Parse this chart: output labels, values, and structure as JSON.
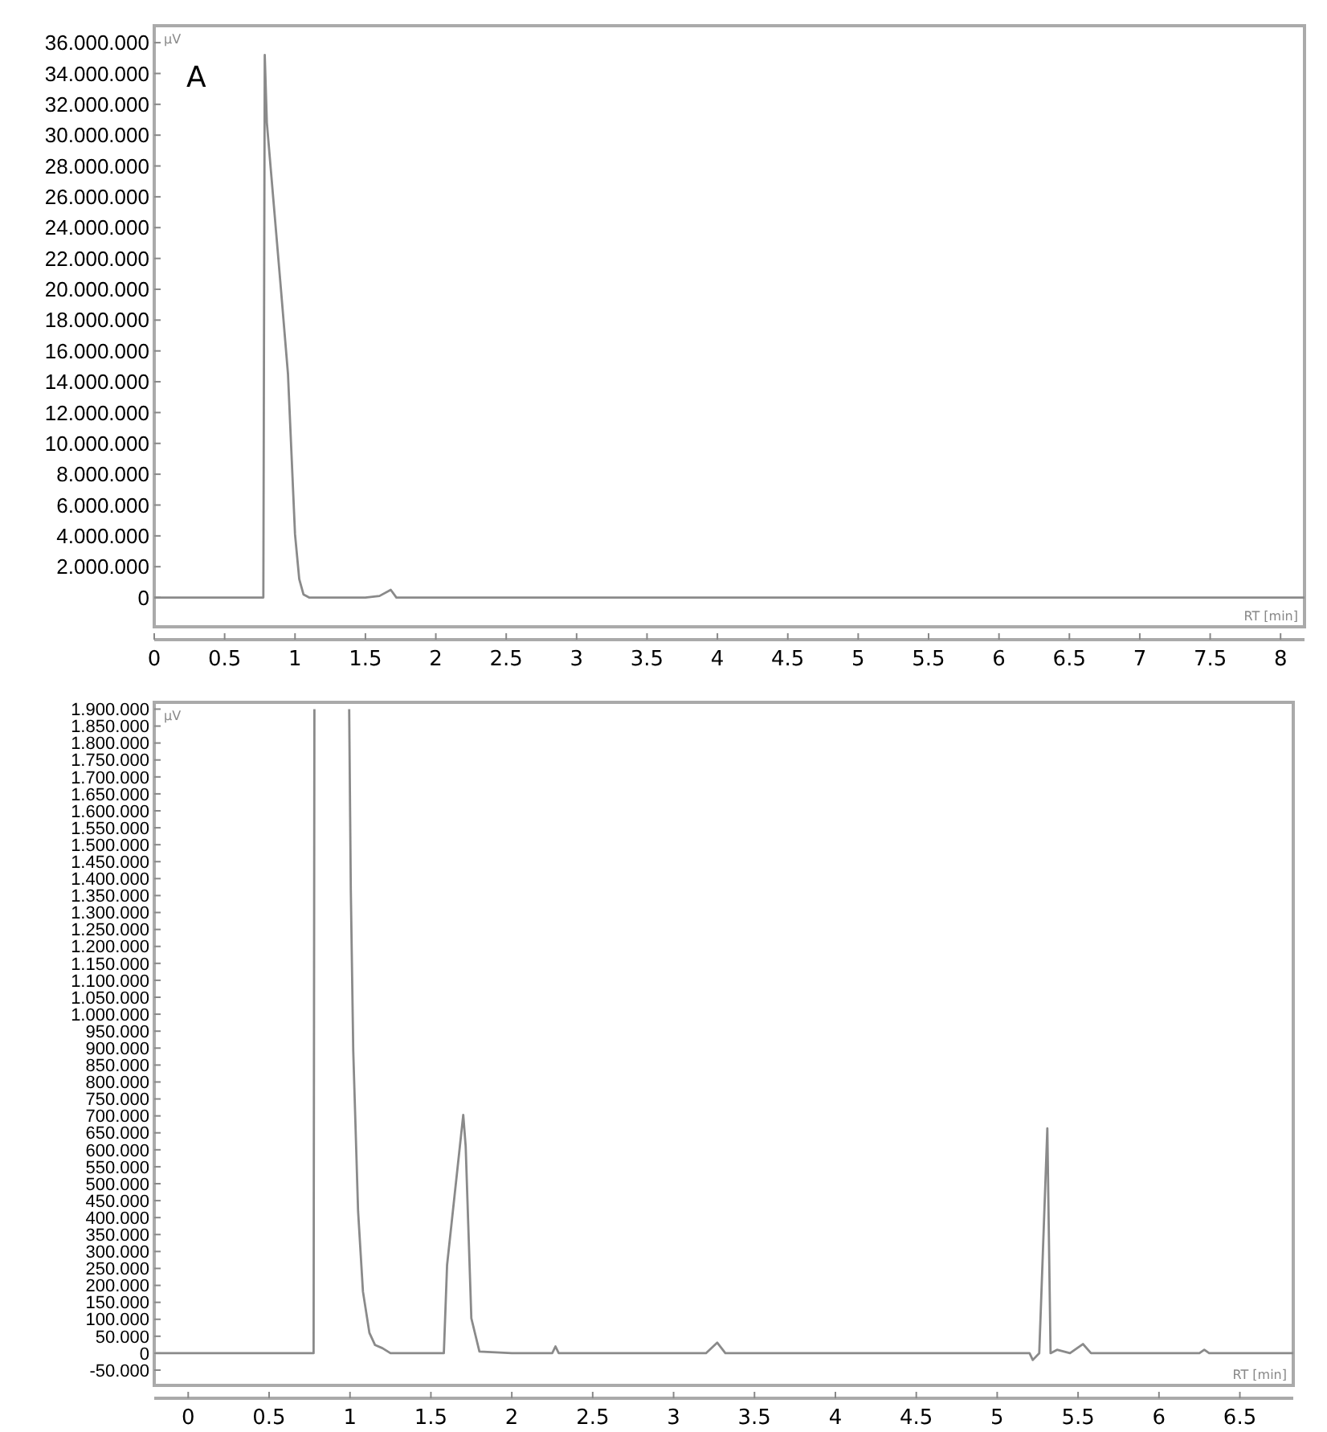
{
  "chart_data": [
    {
      "type": "line",
      "xlabel": "RT [min]",
      "ylabel": "µV",
      "annotations": [
        "A"
      ],
      "xlim": [
        0,
        8.17
      ],
      "ylim": [
        -1900000,
        37100000
      ],
      "xticks": [
        0,
        0.5,
        1,
        1.5,
        2,
        2.5,
        3,
        3.5,
        4,
        4.5,
        5,
        5.5,
        6,
        6.5,
        7,
        7.5,
        8
      ],
      "yticks": [
        0,
        {
          "value": 2000000,
          "label": "2.000.000"
        },
        {
          "value": 4000000,
          "label": "4.000.000"
        },
        {
          "value": 6000000,
          "label": "6.000.000"
        },
        {
          "value": 8000000,
          "label": "8.000.000"
        },
        {
          "value": 10000000,
          "label": "10.000.000"
        },
        {
          "value": 12000000,
          "label": "12.000.000"
        },
        {
          "value": 14000000,
          "label": "14.000.000"
        },
        {
          "value": 16000000,
          "label": "16.000.000"
        },
        {
          "value": 18000000,
          "label": "18.000.000"
        },
        {
          "value": 20000000,
          "label": "20.000.000"
        },
        {
          "value": 22000000,
          "label": "22.000.000"
        },
        {
          "value": 24000000,
          "label": "24.000.000"
        },
        {
          "value": 26000000,
          "label": "26.000.000"
        },
        {
          "value": 28000000,
          "label": "28.000.000"
        },
        {
          "value": 30000000,
          "label": "30.000.000"
        },
        {
          "value": 32000000,
          "label": "32.000.000"
        },
        {
          "value": 34000000,
          "label": "34.000.000"
        },
        {
          "value": 36000000,
          "label": "36.000.000"
        }
      ],
      "marker": "none",
      "line_style": "solid",
      "series": [
        {
          "color": "#8a8a8a",
          "x": [
            0,
            0.5,
            0.76,
            0.775,
            0.785,
            0.8,
            0.85,
            0.9,
            0.95,
            1.0,
            1.03,
            1.06,
            1.1,
            1.2,
            1.5,
            1.6,
            1.68,
            1.72,
            1.8,
            2.5,
            5.2,
            5.3,
            5.4,
            6.9,
            8.17
          ],
          "values": [
            0,
            0,
            0,
            0,
            35200000,
            30800000,
            25400000,
            20000000,
            14500000,
            4100000,
            1200000,
            200000,
            0,
            0,
            0,
            100000,
            500000,
            0,
            0,
            0,
            0,
            0,
            0,
            0,
            0
          ]
        }
      ]
    },
    {
      "type": "line",
      "xlabel": "RT [min]",
      "ylabel": "µV",
      "xlim": [
        -0.21,
        6.83
      ],
      "ylim": [
        -95000,
        1920000
      ],
      "xticks": [
        0,
        0.5,
        1,
        1.5,
        2,
        2.5,
        3,
        3.5,
        4,
        4.5,
        5,
        5.5,
        6,
        6.5
      ],
      "yticks": [
        {
          "value": -50000,
          "label": "-50.000"
        },
        0,
        {
          "value": 50000,
          "label": "50.000"
        },
        {
          "value": 100000,
          "label": "100.000"
        },
        {
          "value": 150000,
          "label": "150.000"
        },
        {
          "value": 200000,
          "label": "200.000"
        },
        {
          "value": 250000,
          "label": "250.000"
        },
        {
          "value": 300000,
          "label": "300.000"
        },
        {
          "value": 350000,
          "label": "350.000"
        },
        {
          "value": 400000,
          "label": "400.000"
        },
        {
          "value": 450000,
          "label": "450.000"
        },
        {
          "value": 500000,
          "label": "500.000"
        },
        {
          "value": 550000,
          "label": "550.000"
        },
        {
          "value": 600000,
          "label": "600.000"
        },
        {
          "value": 650000,
          "label": "650.000"
        },
        {
          "value": 700000,
          "label": "700.000"
        },
        {
          "value": 750000,
          "label": "750.000"
        },
        {
          "value": 800000,
          "label": "800.000"
        },
        {
          "value": 850000,
          "label": "850.000"
        },
        {
          "value": 900000,
          "label": "900.000"
        },
        {
          "value": 950000,
          "label": "950.000"
        },
        {
          "value": 1000000,
          "label": "1.000.000"
        },
        {
          "value": 1050000,
          "label": "1.050.000"
        },
        {
          "value": 1100000,
          "label": "1.100.000"
        },
        {
          "value": 1150000,
          "label": "1.150.000"
        },
        {
          "value": 1200000,
          "label": "1.200.000"
        },
        {
          "value": 1250000,
          "label": "1.250.000"
        },
        {
          "value": 1300000,
          "label": "1.300.000"
        },
        {
          "value": 1350000,
          "label": "1.350.000"
        },
        {
          "value": 1400000,
          "label": "1.400.000"
        },
        {
          "value": 1450000,
          "label": "1.450.000"
        },
        {
          "value": 1500000,
          "label": "1.500.000"
        },
        {
          "value": 1550000,
          "label": "1.550.000"
        },
        {
          "value": 1600000,
          "label": "1.600.000"
        },
        {
          "value": 1650000,
          "label": "1.650.000"
        },
        {
          "value": 1700000,
          "label": "1.700.000"
        },
        {
          "value": 1750000,
          "label": "1.750.000"
        },
        {
          "value": 1800000,
          "label": "1.800.000"
        },
        {
          "value": 1850000,
          "label": "1.850.000"
        },
        {
          "value": 1900000,
          "label": "1.900.000"
        }
      ],
      "marker": "none",
      "line_style": "solid",
      "series": [
        {
          "color": "#8a8a8a",
          "x": [
            -0.2,
            0.5,
            0.775,
            0.78,
            0.9,
            0.995,
            1.005,
            1.02,
            1.05,
            1.08,
            1.12,
            1.155,
            1.2,
            1.25,
            1.58,
            1.6,
            1.7,
            1.715,
            1.75,
            1.8,
            2.0,
            2.25,
            2.27,
            2.29,
            3.2,
            3.27,
            3.32,
            5.2,
            5.22,
            5.26,
            5.31,
            5.33,
            5.37,
            5.45,
            5.53,
            5.58,
            6.25,
            6.28,
            6.31,
            6.83
          ],
          "values": [
            0,
            0,
            0,
            1900000,
            null,
            1900000,
            1367000,
            893000,
            419000,
            182000,
            60000,
            24000,
            15000,
            0,
            0,
            260000,
            703000,
            610000,
            103000,
            5000,
            0,
            0,
            20000,
            0,
            0,
            31000,
            0,
            0,
            -20000,
            0,
            663000,
            0,
            10000,
            0,
            27000,
            0,
            0,
            10000,
            0,
            0
          ]
        }
      ]
    }
  ]
}
